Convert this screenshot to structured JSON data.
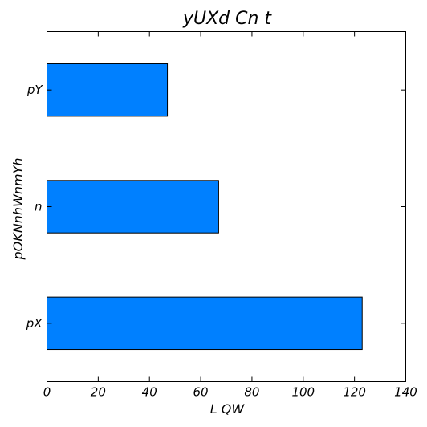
{
  "chart_data": {
    "type": "bar",
    "orientation": "horizontal",
    "title": "yUXd Cn t",
    "xlabel": "L QW",
    "ylabel": "pOKNnhWnmYh",
    "categories": [
      "pX",
      "n",
      "pY"
    ],
    "values": [
      123,
      67,
      47
    ],
    "xlim": [
      0,
      140
    ],
    "xticks": [
      0,
      20,
      40,
      60,
      80,
      100,
      120,
      140
    ],
    "grid": false,
    "bar_color": "#0080ff"
  }
}
